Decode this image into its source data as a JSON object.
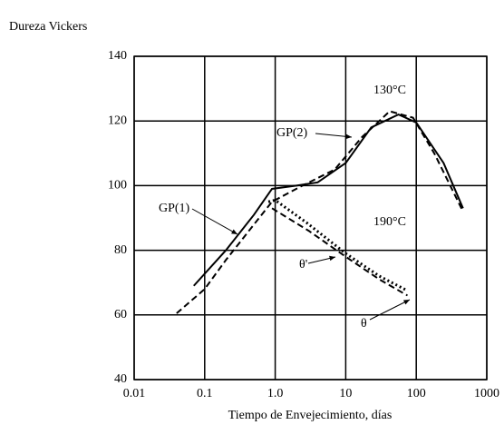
{
  "chart_data": {
    "type": "line",
    "ylabel": "Dureza Vickers",
    "xlabel": "Tiempo de Envejecimiento, días",
    "xscale": "log",
    "grid": true,
    "xlim": [
      0.01,
      1000
    ],
    "xticks": [
      0.01,
      0.1,
      {
        "value": 1,
        "label": "1.0"
      },
      10,
      100,
      1000
    ],
    "ylim": [
      40,
      140
    ],
    "yticks": [
      40,
      60,
      80,
      100,
      120,
      140
    ],
    "series": [
      {
        "color": "#000000",
        "style": "solid",
        "x": [
          0.07,
          0.2,
          0.5,
          0.9,
          2,
          4,
          10,
          23,
          56,
          100,
          244,
          460
        ],
        "values": [
          69,
          80,
          91,
          99,
          100,
          101,
          107,
          118,
          122,
          119.5,
          107,
          93
        ]
      },
      {
        "color": "#000000",
        "style": "dashed",
        "x": [
          0.04,
          0.1,
          0.2,
          0.5,
          0.9,
          2.2,
          7,
          17,
          42,
          90,
          180,
          460
        ],
        "values": [
          60.5,
          68,
          77,
          88,
          95,
          99.5,
          105,
          115,
          123,
          121,
          110,
          92
        ]
      },
      {
        "color": "#000000",
        "style": "dotted",
        "x": [
          0.8,
          1,
          2.8,
          10,
          30,
          75
        ],
        "values": [
          95,
          95.5,
          88.5,
          79,
          72,
          67.5
        ]
      },
      {
        "color": "#000000",
        "style": "dashed",
        "x": [
          0.9,
          3,
          10,
          30,
          75
        ],
        "values": [
          93,
          86,
          78,
          71,
          66
        ]
      }
    ],
    "annotations": [
      "130°C",
      "GP(2)",
      "GP(1)",
      "190°C",
      "θ'",
      "θ"
    ]
  }
}
